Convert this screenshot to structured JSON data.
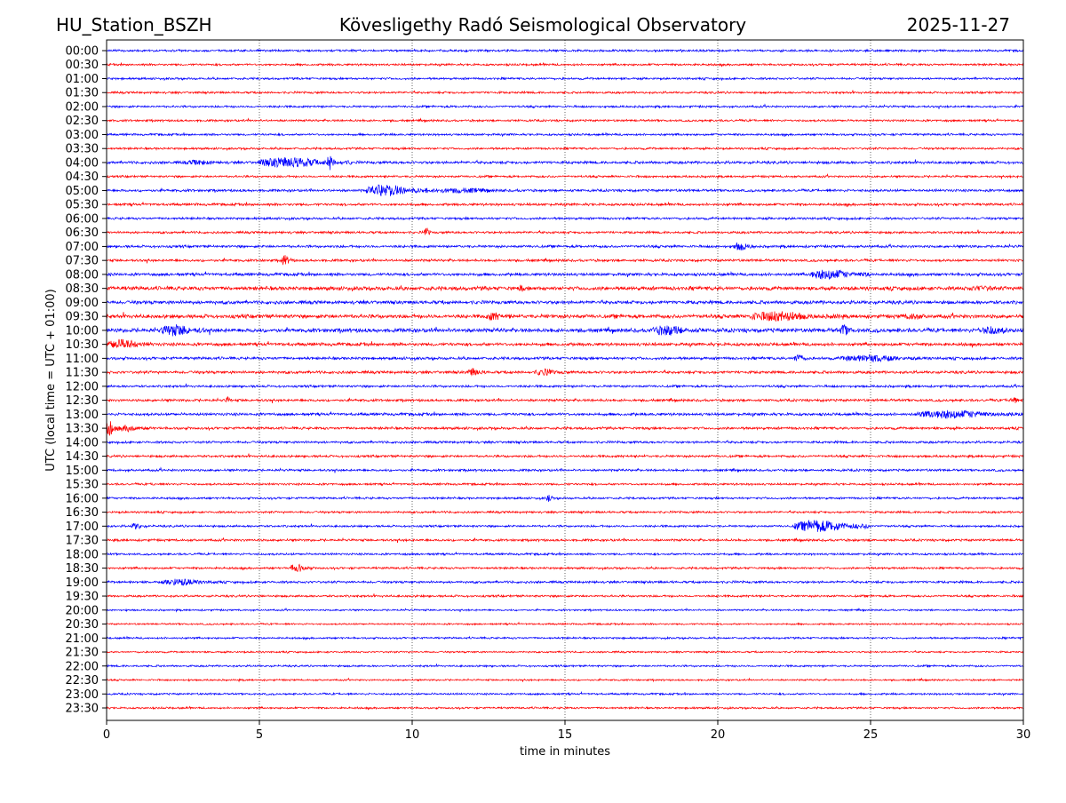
{
  "chart_data": {
    "type": "line",
    "title_left": "HU_Station_BSZH",
    "title": "Kövesligethy Radó Seismological Observatory",
    "title_right": "2025-11-27",
    "xlabel": "time in minutes",
    "ylabel": "UTC (local time = UTC + 01:00)",
    "xlim": [
      0,
      30
    ],
    "xticks": [
      "0",
      "5",
      "10",
      "15",
      "20",
      "25",
      "30"
    ],
    "xtick_values": [
      0,
      5,
      10,
      15,
      20,
      25,
      30
    ],
    "grid": "vertical dotted",
    "row_labels": [
      "00:00",
      "00:30",
      "01:00",
      "01:30",
      "02:00",
      "02:30",
      "03:00",
      "03:30",
      "04:00",
      "04:30",
      "05:00",
      "05:30",
      "06:00",
      "06:30",
      "07:00",
      "07:30",
      "08:00",
      "08:30",
      "09:00",
      "09:30",
      "10:00",
      "10:30",
      "11:00",
      "11:30",
      "12:00",
      "12:30",
      "13:00",
      "13:30",
      "14:00",
      "14:30",
      "15:00",
      "15:30",
      "16:00",
      "16:30",
      "17:00",
      "17:30",
      "18:00",
      "18:30",
      "19:00",
      "19:30",
      "20:00",
      "20:30",
      "21:00",
      "21:30",
      "22:00",
      "22:30",
      "23:00",
      "23:30"
    ],
    "colors": [
      "#0000ff",
      "#ff0000"
    ],
    "noise_level": [
      1,
      1,
      1,
      1,
      1,
      1,
      1,
      1,
      1.3,
      1,
      1.2,
      1.2,
      1.1,
      1.1,
      1.2,
      1.2,
      1.4,
      1.8,
      1.6,
      1.8,
      1.9,
      1.5,
      1.3,
      1.3,
      1.1,
      1.2,
      1.3,
      1.2,
      1.1,
      1.1,
      1.1,
      1,
      1,
      1,
      1,
      1.1,
      1,
      1,
      1.1,
      1,
      0.8,
      0.8,
      0.9,
      0.8,
      0.9,
      0.8,
      0.9,
      0.9
    ],
    "events": [
      {
        "row": 8,
        "start": 2.5,
        "end": 4,
        "amp": 3
      },
      {
        "row": 8,
        "start": 5,
        "end": 8,
        "amp": 6
      },
      {
        "row": 8,
        "start": 7.2,
        "end": 7.5,
        "amp": 9
      },
      {
        "row": 10,
        "start": 8.5,
        "end": 10.5,
        "amp": 7
      },
      {
        "row": 10,
        "start": 10.5,
        "end": 14,
        "amp": 3
      },
      {
        "row": 13,
        "start": 10.4,
        "end": 10.6,
        "amp": 6
      },
      {
        "row": 14,
        "start": 20.5,
        "end": 21.2,
        "amp": 5
      },
      {
        "row": 15,
        "start": 5.7,
        "end": 6.1,
        "amp": 6
      },
      {
        "row": 16,
        "start": 23,
        "end": 25,
        "amp": 6
      },
      {
        "row": 17,
        "start": 13.5,
        "end": 13.7,
        "amp": 5
      },
      {
        "row": 17,
        "start": 28,
        "end": 30,
        "amp": 3
      },
      {
        "row": 19,
        "start": 12.4,
        "end": 13.2,
        "amp": 5
      },
      {
        "row": 19,
        "start": 21,
        "end": 24,
        "amp": 6
      },
      {
        "row": 19,
        "start": 26,
        "end": 27.2,
        "amp": 4
      },
      {
        "row": 20,
        "start": 1.8,
        "end": 3.2,
        "amp": 7
      },
      {
        "row": 20,
        "start": 17.8,
        "end": 19.5,
        "amp": 6
      },
      {
        "row": 20,
        "start": 24,
        "end": 24.4,
        "amp": 7
      },
      {
        "row": 20,
        "start": 28.5,
        "end": 30,
        "amp": 5
      },
      {
        "row": 21,
        "start": 0,
        "end": 1.5,
        "amp": 6
      },
      {
        "row": 22,
        "start": 22.5,
        "end": 23,
        "amp": 5
      },
      {
        "row": 22,
        "start": 24,
        "end": 27,
        "amp": 4
      },
      {
        "row": 23,
        "start": 11.8,
        "end": 12.4,
        "amp": 5
      },
      {
        "row": 23,
        "start": 14,
        "end": 15,
        "amp": 4
      },
      {
        "row": 25,
        "start": 3.9,
        "end": 4.1,
        "amp": 4
      },
      {
        "row": 25,
        "start": 29.5,
        "end": 30,
        "amp": 4
      },
      {
        "row": 26,
        "start": 26.5,
        "end": 30,
        "amp": 5
      },
      {
        "row": 27,
        "start": 0,
        "end": 0.3,
        "amp": 9
      },
      {
        "row": 27,
        "start": 0.3,
        "end": 1.5,
        "amp": 4
      },
      {
        "row": 31,
        "start": 1.5,
        "end": 1.6,
        "amp": 5
      },
      {
        "row": 32,
        "start": 14.4,
        "end": 14.6,
        "amp": 6
      },
      {
        "row": 34,
        "start": 0.8,
        "end": 1.3,
        "amp": 4
      },
      {
        "row": 34,
        "start": 22.5,
        "end": 25,
        "amp": 7
      },
      {
        "row": 37,
        "start": 6,
        "end": 6.7,
        "amp": 5
      },
      {
        "row": 38,
        "start": 1.8,
        "end": 3.8,
        "amp": 4
      }
    ]
  }
}
